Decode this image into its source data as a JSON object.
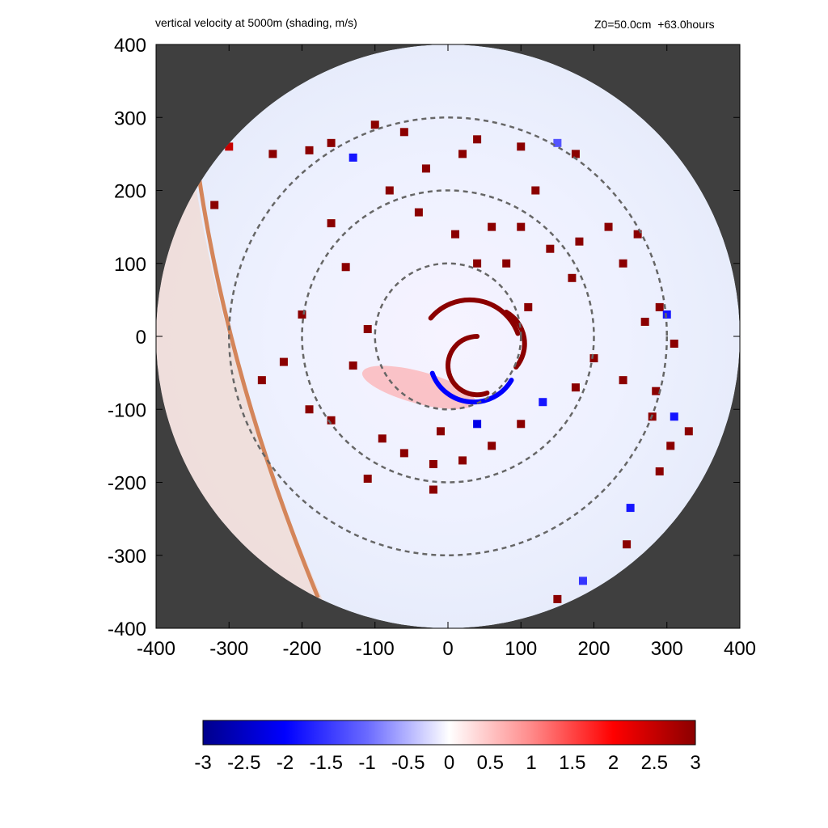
{
  "title_left": "vertical velocity at 5000m (shading, m/s)",
  "title_right": "Z0=50.0cm  +63.0hours",
  "colors": {
    "background_outside": "#3f3f3f",
    "negative": "#0000ff",
    "negative_deep": "#00008b",
    "zero": "#ffffff",
    "positive": "#ff0000",
    "positive_deep": "#8b0000",
    "rings": "#666666",
    "front": "#d4855a"
  },
  "chart_data": {
    "type": "heatmap",
    "title": "vertical velocity at 5000m (shading, m/s)",
    "annotation": "Z0=50.0cm  +63.0hours",
    "xlim": [
      -400,
      400
    ],
    "ylim": [
      -400,
      400
    ],
    "x_ticks": [
      -400,
      -300,
      -200,
      -100,
      0,
      100,
      200,
      300,
      400
    ],
    "y_ticks": [
      400,
      300,
      200,
      100,
      0,
      -100,
      -200,
      -300,
      -400
    ],
    "domain_radius": 400,
    "reference_rings_radius": [
      100,
      200,
      300
    ],
    "colorbar": {
      "min": -3,
      "max": 3,
      "ticks": [
        "-3",
        "-2.5",
        "-2",
        "-1.5",
        "-1",
        "-0.5",
        "0",
        "0.5",
        "1",
        "1.5",
        "2",
        "2.5",
        "3"
      ]
    },
    "features": {
      "eyewall_arcs": [
        {
          "x": 40,
          "y": -40,
          "r": 40,
          "from_deg": 90,
          "to_deg": 290,
          "value": 3
        },
        {
          "x": 30,
          "y": -20,
          "r": 70,
          "from_deg": 20,
          "to_deg": 140,
          "value": 3
        },
        {
          "x": 35,
          "y": -30,
          "r": 60,
          "from_deg": 200,
          "to_deg": 330,
          "value": -2
        },
        {
          "x": 55,
          "y": -10,
          "r": 50,
          "from_deg": -40,
          "to_deg": 60,
          "value": 3
        }
      ],
      "inflow_band": {
        "x": -40,
        "y": -70,
        "value": 0.8
      },
      "cells": [
        {
          "x": -160,
          "y": 265,
          "v": 3
        },
        {
          "x": -190,
          "y": 255,
          "v": 3
        },
        {
          "x": -130,
          "y": 245,
          "v": -1.8
        },
        {
          "x": -240,
          "y": 250,
          "v": 3
        },
        {
          "x": -300,
          "y": 260,
          "v": 2.5
        },
        {
          "x": -320,
          "y": 180,
          "v": 3
        },
        {
          "x": -100,
          "y": 290,
          "v": 3
        },
        {
          "x": -60,
          "y": 280,
          "v": 3
        },
        {
          "x": 40,
          "y": 270,
          "v": 3
        },
        {
          "x": 100,
          "y": 260,
          "v": 3
        },
        {
          "x": 150,
          "y": 265,
          "v": -1.2
        },
        {
          "x": 175,
          "y": 250,
          "v": 3
        },
        {
          "x": -30,
          "y": 230,
          "v": 3
        },
        {
          "x": 20,
          "y": 250,
          "v": 3
        },
        {
          "x": 120,
          "y": 200,
          "v": 3
        },
        {
          "x": -80,
          "y": 200,
          "v": 3
        },
        {
          "x": -160,
          "y": 155,
          "v": 3
        },
        {
          "x": -140,
          "y": 95,
          "v": 3
        },
        {
          "x": -40,
          "y": 170,
          "v": 3
        },
        {
          "x": 10,
          "y": 140,
          "v": 3
        },
        {
          "x": 60,
          "y": 150,
          "v": 3
        },
        {
          "x": 100,
          "y": 150,
          "v": 3
        },
        {
          "x": 140,
          "y": 120,
          "v": 3
        },
        {
          "x": 170,
          "y": 80,
          "v": 3
        },
        {
          "x": 180,
          "y": 130,
          "v": 3
        },
        {
          "x": 220,
          "y": 150,
          "v": 3
        },
        {
          "x": 240,
          "y": 100,
          "v": 3
        },
        {
          "x": 260,
          "y": 140,
          "v": 3
        },
        {
          "x": 290,
          "y": 40,
          "v": 3
        },
        {
          "x": 270,
          "y": 20,
          "v": 3
        },
        {
          "x": 300,
          "y": 30,
          "v": -1.8
        },
        {
          "x": 310,
          "y": -10,
          "v": 3
        },
        {
          "x": 285,
          "y": -75,
          "v": 3
        },
        {
          "x": 280,
          "y": -110,
          "v": 3
        },
        {
          "x": 310,
          "y": -110,
          "v": -1.8
        },
        {
          "x": 330,
          "y": -130,
          "v": 3
        },
        {
          "x": 305,
          "y": -150,
          "v": 3
        },
        {
          "x": 290,
          "y": -185,
          "v": 3
        },
        {
          "x": 250,
          "y": -235,
          "v": -1.8
        },
        {
          "x": 245,
          "y": -285,
          "v": 3
        },
        {
          "x": 185,
          "y": -335,
          "v": -1.5
        },
        {
          "x": 150,
          "y": -360,
          "v": 3
        },
        {
          "x": 200,
          "y": -30,
          "v": 3
        },
        {
          "x": 175,
          "y": -70,
          "v": 3
        },
        {
          "x": 240,
          "y": -60,
          "v": 3
        },
        {
          "x": -200,
          "y": 30,
          "v": 3
        },
        {
          "x": -225,
          "y": -35,
          "v": 3
        },
        {
          "x": -255,
          "y": -60,
          "v": 3
        },
        {
          "x": -190,
          "y": -100,
          "v": 3
        },
        {
          "x": -160,
          "y": -115,
          "v": 3
        },
        {
          "x": -90,
          "y": -140,
          "v": 3
        },
        {
          "x": -60,
          "y": -160,
          "v": 3
        },
        {
          "x": -20,
          "y": -175,
          "v": 3
        },
        {
          "x": 20,
          "y": -170,
          "v": 3
        },
        {
          "x": 60,
          "y": -150,
          "v": 3
        },
        {
          "x": 40,
          "y": -120,
          "v": -2.2
        },
        {
          "x": -10,
          "y": -130,
          "v": 3
        },
        {
          "x": -130,
          "y": -40,
          "v": 3
        },
        {
          "x": -110,
          "y": 10,
          "v": 3
        },
        {
          "x": -20,
          "y": -210,
          "v": 3
        },
        {
          "x": -110,
          "y": -195,
          "v": 3
        },
        {
          "x": 100,
          "y": -120,
          "v": 3
        },
        {
          "x": 130,
          "y": -90,
          "v": -1.8
        },
        {
          "x": 110,
          "y": 40,
          "v": 3
        },
        {
          "x": 80,
          "y": 100,
          "v": 3
        },
        {
          "x": 40,
          "y": 100,
          "v": 3
        }
      ]
    }
  }
}
